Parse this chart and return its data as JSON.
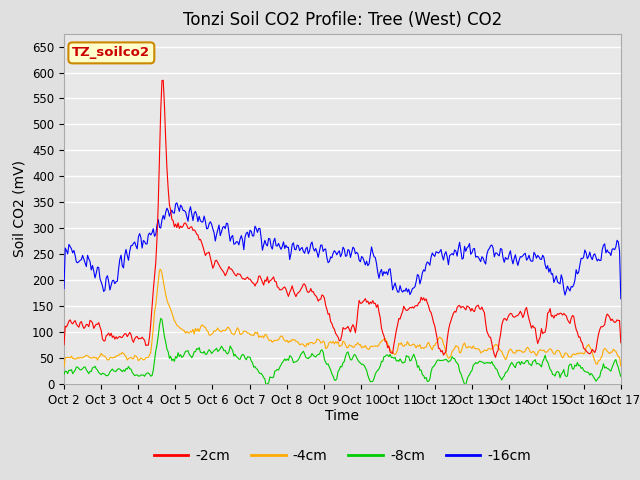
{
  "title": "Tonzi Soil CO2 Profile: Tree (West) CO2",
  "ylabel": "Soil CO2 (mV)",
  "xlabel": "Time",
  "annotation": "TZ_soilco2",
  "legend_labels": [
    "-2cm",
    "-4cm",
    "-8cm",
    "-16cm"
  ],
  "legend_colors": [
    "#ff0000",
    "#ffaa00",
    "#00cc00",
    "#0000ff"
  ],
  "ylim": [
    0,
    675
  ],
  "yticks": [
    0,
    50,
    100,
    150,
    200,
    250,
    300,
    350,
    400,
    450,
    500,
    550,
    600,
    650
  ],
  "xtick_labels": [
    "Oct 2",
    "Oct 3",
    "Oct 4",
    "Oct 5",
    "Oct 6",
    "Oct 7",
    "Oct 8",
    "Oct 9",
    "Oct 10",
    "Oct 11",
    "Oct 12",
    "Oct 13",
    "Oct 14",
    "Oct 15",
    "Oct 16",
    "Oct 17"
  ],
  "background_color": "#e0e0e0",
  "plot_bg_color": "#e8e8e8",
  "grid_color": "#ffffff",
  "title_fontsize": 12,
  "axis_label_fontsize": 10,
  "tick_fontsize": 8.5
}
